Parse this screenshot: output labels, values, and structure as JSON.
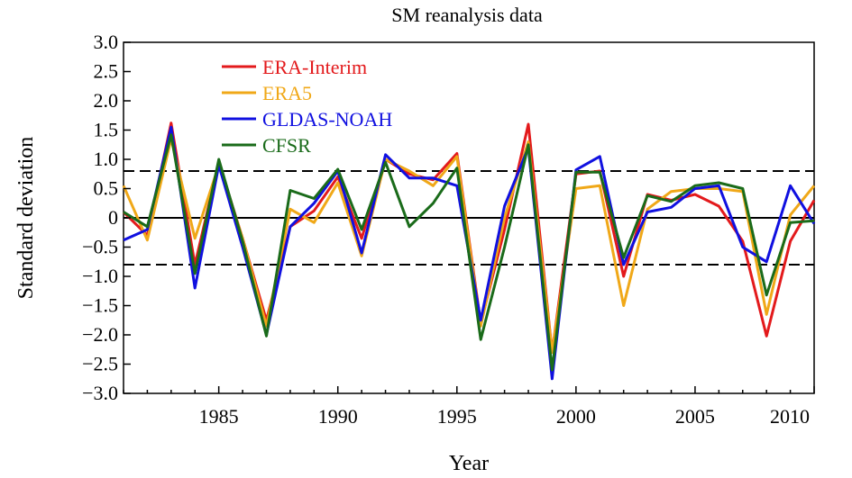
{
  "chart_data": {
    "type": "line",
    "title": "SM reanalysis data",
    "xlabel": "Year",
    "ylabel": "Standard deviation",
    "xlim": [
      1981,
      2010
    ],
    "ylim": [
      -3.0,
      3.0
    ],
    "x_ticks": [
      1985,
      1990,
      1995,
      2000,
      2005,
      2010
    ],
    "y_ticks": [
      3.0,
      2.5,
      2.0,
      1.5,
      1.0,
      0.5,
      0,
      -0.5,
      -1.0,
      -1.5,
      -2.0,
      -2.5,
      -3.0
    ],
    "y_tick_labels": [
      "3.0",
      "2.5",
      "2.0",
      "1.5",
      "1.0",
      "0.5",
      "0",
      "−0.5",
      "−1.0",
      "−1.5",
      "−2.0",
      "−2.5",
      "−3.0"
    ],
    "reference_lines": [
      {
        "y": 0.8,
        "style": "dashed"
      },
      {
        "y": 0,
        "style": "solid"
      },
      {
        "y": -0.8,
        "style": "dashed"
      }
    ],
    "legend_position": "top-left",
    "x": [
      1981,
      1982,
      1983,
      1984,
      1985,
      1986,
      1987,
      1988,
      1989,
      1990,
      1991,
      1992,
      1993,
      1994,
      1995,
      1996,
      1997,
      1998,
      1999,
      2000,
      2001,
      2002,
      2003,
      2004,
      2005,
      2006,
      2007,
      2008,
      2009,
      2010
    ],
    "series": [
      {
        "name": "ERA-Interim",
        "color": "#e31a1c",
        "values": [
          0.1,
          -0.3,
          1.62,
          -0.8,
          0.95,
          -0.35,
          -1.75,
          -0.15,
          0.12,
          0.7,
          -0.35,
          1.0,
          0.75,
          0.65,
          1.1,
          -1.8,
          -0.2,
          1.6,
          -2.3,
          0.75,
          0.8,
          -1.0,
          0.4,
          0.3,
          0.4,
          0.2,
          -0.4,
          -2.02,
          -0.4,
          0.3
        ]
      },
      {
        "name": "ERA5",
        "color": "#f0a818",
        "values": [
          0.55,
          -0.38,
          1.35,
          -0.35,
          0.9,
          -0.35,
          -1.85,
          0.15,
          -0.08,
          0.6,
          -0.65,
          1.0,
          0.8,
          0.55,
          1.05,
          -1.85,
          0.0,
          1.3,
          -2.3,
          0.5,
          0.55,
          -1.5,
          0.15,
          0.45,
          0.5,
          0.5,
          0.45,
          -1.65,
          0.05,
          0.55
        ]
      },
      {
        "name": "GLDAS-NOAH",
        "color": "#1010e0",
        "values": [
          -0.38,
          -0.2,
          1.55,
          -1.2,
          0.9,
          -0.5,
          -2.0,
          -0.15,
          0.25,
          0.8,
          -0.6,
          1.08,
          0.68,
          0.68,
          0.55,
          -1.75,
          0.2,
          1.2,
          -2.75,
          0.82,
          1.05,
          -0.8,
          0.1,
          0.18,
          0.5,
          0.55,
          -0.5,
          -0.75,
          0.55,
          -0.1
        ]
      },
      {
        "name": "CFSR",
        "color": "#1a6b1a",
        "values": [
          0.1,
          -0.15,
          1.42,
          -0.95,
          1.0,
          -0.4,
          -2.02,
          0.47,
          0.33,
          0.83,
          -0.2,
          0.95,
          -0.15,
          0.25,
          0.85,
          -2.08,
          -0.5,
          1.25,
          -2.6,
          0.78,
          0.78,
          -0.68,
          0.38,
          0.28,
          0.55,
          0.6,
          0.5,
          -1.32,
          -0.08,
          -0.05
        ]
      }
    ]
  }
}
